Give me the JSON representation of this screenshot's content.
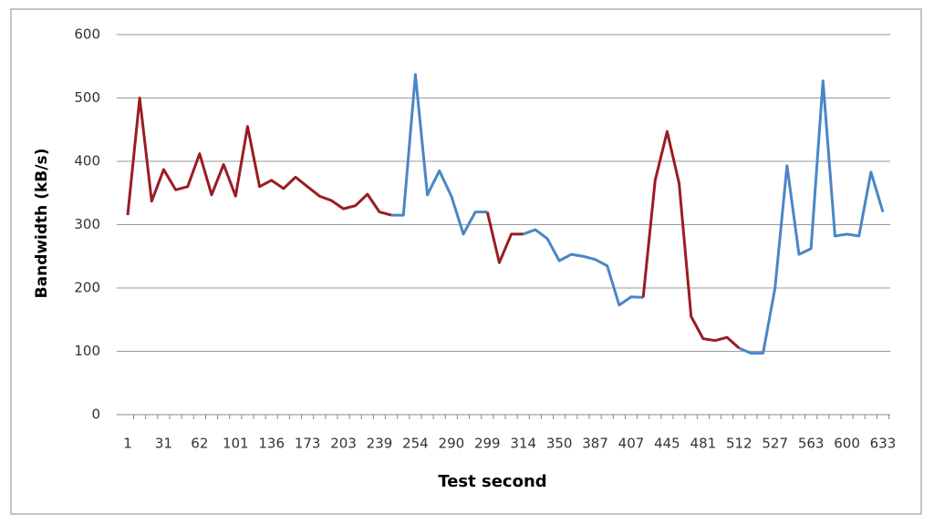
{
  "chart_data": {
    "type": "line",
    "x_label": "Test second",
    "y_label": "Bandwidth (kB/s)",
    "categories": [
      "1",
      null,
      null,
      "31",
      null,
      null,
      "62",
      null,
      null,
      "101",
      null,
      null,
      "136",
      null,
      null,
      "173",
      null,
      null,
      "203",
      null,
      null,
      "239",
      null,
      null,
      "254",
      null,
      null,
      "290",
      null,
      null,
      "299",
      null,
      null,
      "314",
      null,
      null,
      "350",
      null,
      null,
      "387",
      null,
      null,
      "407",
      null,
      null,
      "445",
      null,
      null,
      "481",
      null,
      null,
      "512",
      null,
      null,
      "527",
      null,
      null,
      "563",
      null,
      null,
      "600",
      null,
      null,
      "633"
    ],
    "values": [
      315,
      500,
      337,
      387,
      355,
      360,
      412,
      347,
      395,
      345,
      455,
      360,
      370,
      357,
      375,
      360,
      345,
      338,
      325,
      330,
      348,
      320,
      315,
      315,
      537,
      347,
      385,
      345,
      285,
      320,
      320,
      240,
      285,
      285,
      292,
      278,
      243,
      253,
      250,
      245,
      235,
      173,
      186,
      185,
      370,
      447,
      365,
      155,
      120,
      117,
      122,
      105,
      97,
      97,
      200,
      393,
      253,
      262,
      527,
      282,
      285,
      282,
      383,
      320
    ],
    "segments": [
      {
        "from": 0,
        "to": 22,
        "color": "#9b1c22"
      },
      {
        "from": 22,
        "to": 30,
        "color": "#4a86c6"
      },
      {
        "from": 30,
        "to": 33,
        "color": "#9b1c22"
      },
      {
        "from": 33,
        "to": 43,
        "color": "#4a86c6"
      },
      {
        "from": 43,
        "to": 51,
        "color": "#9b1c22"
      },
      {
        "from": 51,
        "to": 63,
        "color": "#4a86c6"
      }
    ],
    "ylim": [
      0,
      600
    ],
    "yticks": [
      0,
      100,
      200,
      300,
      400,
      500,
      600
    ],
    "grid": true
  }
}
